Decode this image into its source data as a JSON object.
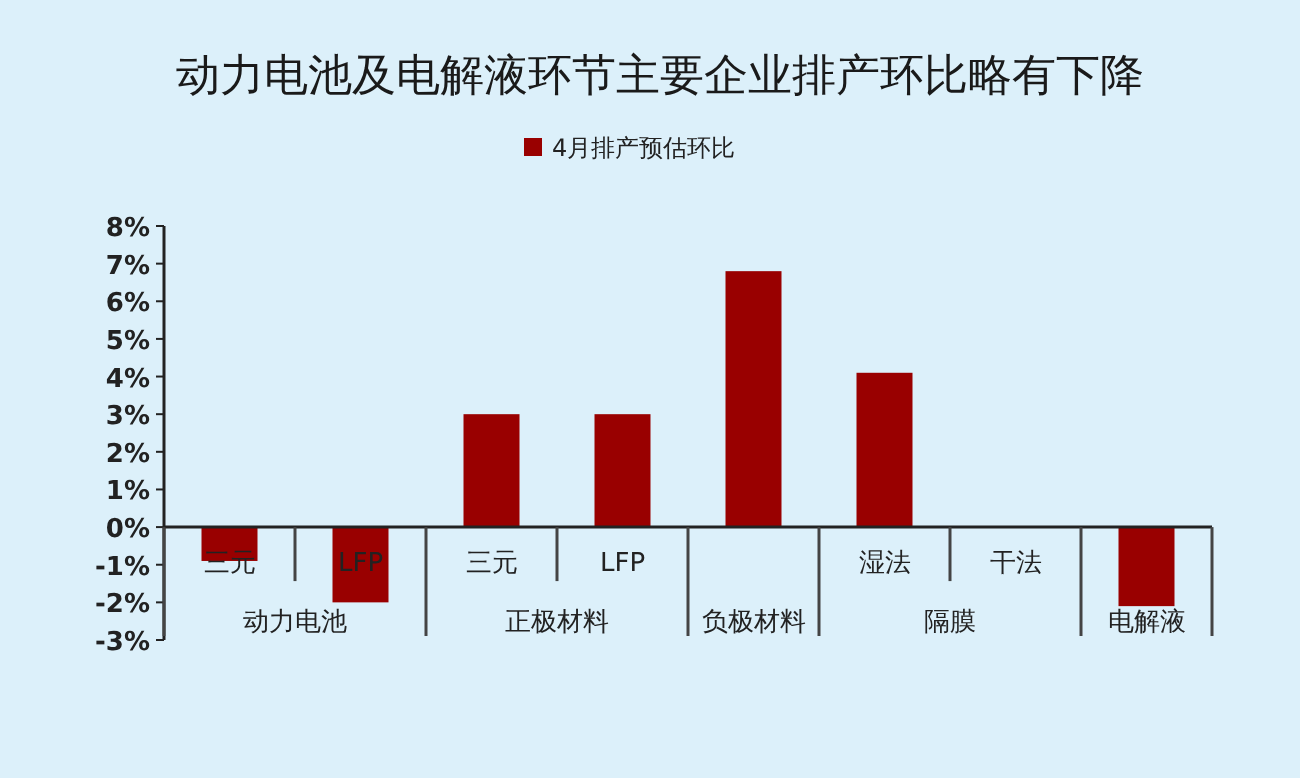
{
  "chart_data": {
    "type": "bar",
    "title": "动力电池及电解液环节主要企业排产环比略有下降",
    "categories": [
      "三元",
      "LFP",
      "三元",
      "LFP",
      null,
      "湿法",
      "干法",
      null
    ],
    "series": [
      {
        "name": "4月排产预估环比",
        "color": "#990000",
        "values": [
          -0.9,
          -2.0,
          3.0,
          3.0,
          6.8,
          4.1,
          0,
          -2.1
        ]
      }
    ],
    "ylim": [
      -3,
      8
    ],
    "yticks": [
      {
        "value": -3,
        "label": "-3%"
      },
      {
        "value": -2,
        "label": "-2%"
      },
      {
        "value": -1,
        "label": "-1%"
      },
      {
        "value": 0,
        "label": "0%"
      },
      {
        "value": 1,
        "label": "1%"
      },
      {
        "value": 2,
        "label": "2%"
      },
      {
        "value": 3,
        "label": "3%"
      },
      {
        "value": 4,
        "label": "4%"
      },
      {
        "value": 5,
        "label": "5%"
      },
      {
        "value": 6,
        "label": "6%"
      },
      {
        "value": 7,
        "label": "7%"
      },
      {
        "value": 8,
        "label": "8%"
      }
    ],
    "annotations": [
      "动力电池",
      "正极材料",
      "负极材料",
      "隔膜",
      "电解液"
    ],
    "legend": "top",
    "grid": false
  }
}
